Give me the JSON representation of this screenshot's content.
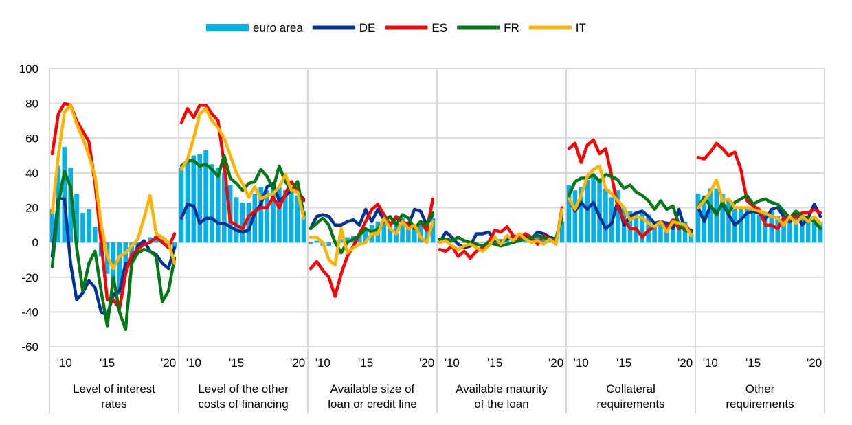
{
  "chart_data": {
    "type": "bar+line",
    "title": "",
    "ylim": [
      -60,
      100
    ],
    "yticks": [
      100,
      80,
      60,
      40,
      20,
      0,
      -20,
      -40,
      -60
    ],
    "xtick_labels": [
      "'10",
      "'15",
      "'20"
    ],
    "xtick_index": [
      2,
      9,
      19
    ],
    "grid": true,
    "legend_position": "top-center",
    "legend": [
      {
        "name": "euro area",
        "kind": "bar",
        "color": "#00b1ea"
      },
      {
        "name": "DE",
        "kind": "line",
        "color": "#003299"
      },
      {
        "name": "ES",
        "kind": "line",
        "color": "#ff0000"
      },
      {
        "name": "FR",
        "kind": "line",
        "color": "#007816"
      },
      {
        "name": "IT",
        "kind": "line",
        "color": "#ffb400"
      }
    ],
    "panels": [
      {
        "label": [
          "Level of interest",
          "rates"
        ],
        "euro_area": [
          19,
          44,
          55,
          43,
          28,
          17,
          19,
          9,
          -8,
          -18,
          -25,
          -30,
          -14,
          -9,
          -4,
          1,
          3,
          4,
          2,
          -2,
          -3
        ],
        "DE": [
          -8,
          25,
          25,
          -12,
          -33,
          -29,
          -22,
          -26,
          -40,
          -42,
          -30,
          -28,
          -12,
          -12,
          -2,
          1,
          -5,
          -7,
          -12,
          -15,
          -3
        ],
        "ES": [
          51,
          74,
          80,
          79,
          70,
          64,
          58,
          34,
          0,
          -33,
          -33,
          -38,
          -18,
          -7,
          -4,
          -1,
          0,
          3,
          0,
          -3,
          5
        ],
        "FR": [
          -14,
          22,
          41,
          32,
          -3,
          -28,
          -12,
          -5,
          -28,
          -48,
          -20,
          -40,
          -50,
          -12,
          -6,
          -4,
          -5,
          -8,
          -34,
          -28,
          -9
        ],
        "IT": [
          17,
          50,
          75,
          79,
          68,
          60,
          50,
          38,
          10,
          -8,
          -15,
          -8,
          -6,
          -2,
          2,
          14,
          27,
          5,
          3,
          0,
          -12
        ]
      },
      {
        "label": [
          "Level of the other",
          "costs of financing"
        ],
        "euro_area": [
          43,
          48,
          50,
          51,
          53,
          45,
          43,
          40,
          33,
          26,
          23,
          23,
          28,
          32,
          30,
          34,
          32,
          30,
          29,
          27,
          18
        ],
        "DE": [
          14,
          22,
          21,
          11,
          14,
          14,
          11,
          11,
          9,
          7,
          6,
          7,
          17,
          22,
          32,
          34,
          24,
          27,
          30,
          29,
          25
        ],
        "ES": [
          69,
          77,
          72,
          79,
          79,
          74,
          70,
          45,
          12,
          10,
          8,
          15,
          18,
          20,
          20,
          26,
          20,
          28,
          35,
          30,
          24
        ],
        "FR": [
          44,
          47,
          47,
          44,
          45,
          42,
          38,
          50,
          37,
          34,
          30,
          34,
          35,
          42,
          38,
          31,
          44,
          35,
          30,
          35,
          16
        ],
        "IT": [
          42,
          48,
          60,
          74,
          77,
          70,
          66,
          60,
          50,
          40,
          34,
          26,
          32,
          25,
          27,
          28,
          32,
          39,
          30,
          29,
          14
        ]
      },
      {
        "label": [
          "Available size of",
          "loan or credit line"
        ],
        "euro_area": [
          -1,
          1,
          -2,
          -2,
          1,
          2,
          3,
          4,
          5,
          8,
          10,
          12,
          11,
          12,
          10,
          14,
          12,
          10,
          12,
          10,
          14
        ],
        "DE": [
          8,
          15,
          16,
          15,
          10,
          10,
          12,
          13,
          10,
          19,
          12,
          19,
          13,
          10,
          14,
          12,
          10,
          19,
          18,
          10,
          16
        ],
        "ES": [
          -15,
          -11,
          -16,
          -20,
          -31,
          -18,
          -8,
          -2,
          5,
          12,
          19,
          22,
          16,
          10,
          15,
          12,
          10,
          8,
          12,
          7,
          25
        ],
        "FR": [
          8,
          11,
          14,
          10,
          0,
          -6,
          0,
          2,
          4,
          8,
          6,
          8,
          12,
          15,
          10,
          16,
          14,
          8,
          12,
          10,
          17
        ],
        "IT": [
          3,
          3,
          0,
          -10,
          -13,
          8,
          -6,
          -3,
          -1,
          0,
          5,
          5,
          14,
          8,
          5,
          12,
          8,
          10,
          3,
          0,
          12
        ]
      },
      {
        "label": [
          "Available maturity",
          "of the loan"
        ],
        "euro_area": [
          1,
          2,
          1,
          0,
          0,
          -1,
          0,
          0,
          1,
          2,
          2,
          3,
          3,
          3,
          3,
          3,
          3,
          3,
          3,
          3,
          12
        ],
        "DE": [
          0,
          6,
          3,
          -1,
          -3,
          -2,
          5,
          5,
          6,
          1,
          0,
          2,
          3,
          4,
          3,
          2,
          6,
          5,
          3,
          2,
          16
        ],
        "ES": [
          -4,
          -5,
          -2,
          -8,
          -5,
          -9,
          -5,
          -3,
          0,
          7,
          6,
          9,
          4,
          2,
          5,
          3,
          -1,
          4,
          2,
          -1,
          20
        ],
        "FR": [
          2,
          2,
          1,
          3,
          1,
          0,
          -1,
          -2,
          0,
          -1,
          -2,
          -1,
          0,
          1,
          2,
          3,
          4,
          3,
          1,
          2,
          14
        ],
        "IT": [
          0,
          1,
          -2,
          -4,
          -2,
          -1,
          -3,
          -5,
          -2,
          3,
          -1,
          4,
          1,
          5,
          2,
          0,
          1,
          -1,
          2,
          -1,
          19
        ]
      },
      {
        "label": [
          "Collateral",
          "requirements"
        ],
        "euro_area": [
          33,
          30,
          32,
          36,
          38,
          37,
          31,
          26,
          30,
          20,
          18,
          17,
          18,
          16,
          12,
          12,
          12,
          12,
          12,
          12,
          5
        ],
        "DE": [
          25,
          18,
          23,
          19,
          23,
          15,
          8,
          11,
          24,
          10,
          15,
          17,
          18,
          15,
          11,
          12,
          11,
          8,
          19,
          7,
          7
        ],
        "ES": [
          54,
          57,
          46,
          56,
          59,
          51,
          54,
          38,
          20,
          13,
          8,
          8,
          3,
          7,
          9,
          12,
          8,
          13,
          8,
          10,
          6
        ],
        "FR": [
          27,
          35,
          37,
          37,
          39,
          35,
          39,
          38,
          36,
          31,
          33,
          29,
          27,
          24,
          19,
          24,
          19,
          21,
          10,
          7,
          6
        ],
        "IT": [
          25,
          19,
          27,
          38,
          42,
          44,
          31,
          28,
          24,
          20,
          13,
          15,
          14,
          11,
          9,
          12,
          6,
          12,
          11,
          10,
          4
        ]
      },
      {
        "label": [
          "Other",
          "requirements"
        ],
        "euro_area": [
          28,
          27,
          31,
          31,
          28,
          24,
          19,
          20,
          19,
          17,
          16,
          17,
          18,
          15,
          15,
          14,
          14,
          14,
          14,
          15,
          12
        ],
        "DE": [
          20,
          12,
          21,
          17,
          22,
          16,
          10,
          13,
          17,
          18,
          17,
          13,
          19,
          20,
          15,
          12,
          17,
          10,
          14,
          22,
          15
        ],
        "ES": [
          49,
          48,
          52,
          57,
          54,
          50,
          52,
          42,
          24,
          21,
          19,
          10,
          10,
          8,
          14,
          13,
          15,
          17,
          17,
          19,
          17
        ],
        "FR": [
          20,
          26,
          21,
          16,
          23,
          17,
          23,
          25,
          27,
          22,
          24,
          25,
          23,
          22,
          18,
          14,
          18,
          15,
          14,
          12,
          8
        ],
        "IT": [
          20,
          24,
          29,
          36,
          24,
          25,
          20,
          20,
          20,
          19,
          18,
          17,
          15,
          14,
          10,
          15,
          11,
          15,
          12,
          15,
          11
        ]
      }
    ]
  }
}
